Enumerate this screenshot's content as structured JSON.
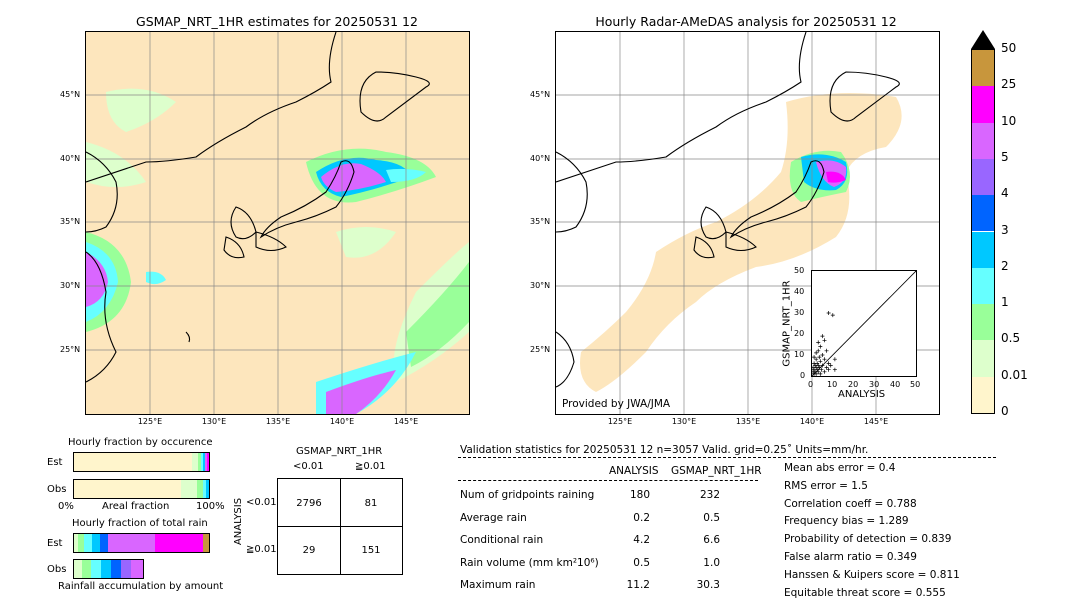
{
  "left_map": {
    "title": "GSMAP_NRT_1HR estimates for 20250531 12",
    "lat_labels": [
      "45°N",
      "40°N",
      "35°N",
      "30°N",
      "25°N"
    ],
    "lon_labels": [
      "125°E",
      "130°E",
      "135°E",
      "140°E",
      "145°E"
    ]
  },
  "right_map": {
    "title": "Hourly Radar-AMeDAS analysis for 20250531 12",
    "lat_labels": [
      "45°N",
      "40°N",
      "35°N",
      "30°N",
      "25°N"
    ],
    "lon_labels": [
      "125°E",
      "130°E",
      "135°E",
      "140°E",
      "145°E"
    ],
    "credit": "Provided by JWA/JMA"
  },
  "colorbar": {
    "labels": [
      "50",
      "25",
      "10",
      "5",
      "4",
      "3",
      "2",
      "1",
      "0.5",
      "0.01",
      "0"
    ],
    "colors": [
      "#c8963c",
      "#ff00ff",
      "#d966ff",
      "#9966ff",
      "#0064ff",
      "#00c8ff",
      "#66ffff",
      "#99ff99",
      "#ddffcc",
      "#fff5cc"
    ],
    "over_color": "#000000",
    "no_rain_color": "#fde6bd"
  },
  "scatter": {
    "xlabel": "ANALYSIS",
    "ylabel": "GSMAP_NRT_1HR",
    "ticks": [
      "0",
      "10",
      "20",
      "30",
      "40",
      "50"
    ]
  },
  "fraction_occurrence": {
    "title": "Hourly fraction by occurence",
    "row_est": "Est",
    "row_obs": "Obs",
    "axis_left": "0%",
    "axis_mid": "Areal fraction",
    "axis_right": "100%"
  },
  "fraction_total": {
    "title": "Hourly fraction of total rain",
    "row_est": "Est",
    "row_obs": "Obs",
    "footer": "Rainfall accumulation by amount"
  },
  "contingency": {
    "title": "GSMAP_NRT_1HR",
    "col_lt": "<0.01",
    "col_ge": "≧0.01",
    "row_axis": "ANALYSIS",
    "row_lt": "<0.01",
    "row_ge": "≧0.01",
    "a": "2796",
    "b": "81",
    "c": "29",
    "d": "151"
  },
  "validation": {
    "header": "Validation statistics for 20250531 12  n=3057 Valid. grid=0.25˚ Units=mm/hr.",
    "col_analysis": "ANALYSIS",
    "col_gsmap": "GSMAP_NRT_1HR",
    "rows": [
      {
        "label": "Num of gridpoints raining",
        "analysis": "180",
        "gsmap": "232"
      },
      {
        "label": "Average rain",
        "analysis": "0.2",
        "gsmap": "0.5"
      },
      {
        "label": "Conditional rain",
        "analysis": "4.2",
        "gsmap": "6.6"
      },
      {
        "label": "Rain volume (mm km²10⁶)",
        "analysis": "0.5",
        "gsmap": "1.0"
      },
      {
        "label": "Maximum rain",
        "analysis": "11.2",
        "gsmap": "30.3"
      }
    ],
    "scores": [
      "Mean abs error =    0.4",
      "RMS error =    1.5",
      "Correlation coeff =  0.788",
      "Frequency bias =  1.289",
      "Probability of detection =  0.839",
      "False alarm ratio =  0.349",
      "Hanssen & Kuipers score =  0.811",
      "Equitable threat score =  0.555"
    ]
  },
  "chart_data": {
    "type": "scatter",
    "xlabel": "ANALYSIS",
    "ylabel": "GSMAP_NRT_1HR",
    "xlim": [
      0,
      50
    ],
    "ylim": [
      0,
      50
    ],
    "points": [
      [
        0.5,
        2
      ],
      [
        0.5,
        4
      ],
      [
        1,
        1
      ],
      [
        1,
        3
      ],
      [
        1,
        6
      ],
      [
        1,
        9
      ],
      [
        1.5,
        2
      ],
      [
        1.5,
        5
      ],
      [
        2,
        1
      ],
      [
        2,
        4
      ],
      [
        2,
        8
      ],
      [
        2,
        11
      ],
      [
        2.5,
        3
      ],
      [
        2.5,
        6
      ],
      [
        3,
        2
      ],
      [
        3,
        5
      ],
      [
        3,
        12
      ],
      [
        3,
        16
      ],
      [
        3.5,
        4
      ],
      [
        3.5,
        9
      ],
      [
        4,
        1
      ],
      [
        4,
        7
      ],
      [
        4,
        14
      ],
      [
        4.5,
        3
      ],
      [
        5,
        5
      ],
      [
        5,
        10
      ],
      [
        5,
        19
      ],
      [
        6,
        2
      ],
      [
        6,
        8
      ],
      [
        6,
        17
      ],
      [
        7,
        4
      ],
      [
        7,
        12
      ],
      [
        8,
        3
      ],
      [
        8,
        6
      ],
      [
        8,
        30
      ],
      [
        9,
        5
      ],
      [
        10,
        29
      ],
      [
        11,
        3
      ],
      [
        11,
        8
      ]
    ]
  }
}
